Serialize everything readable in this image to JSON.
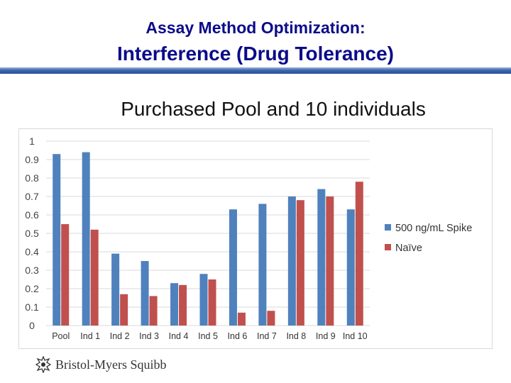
{
  "slide": {
    "subtitle": "Assay Method Optimization:",
    "title": "Interference (Drug Tolerance)",
    "chart_heading": "Purchased Pool and 10 individuals",
    "logo_text": "Bristol-Myers Squibb"
  },
  "colors": {
    "header_text": "#0b0b8a",
    "series_spike": "#4f81bd",
    "series_naive": "#c0504d",
    "gridline": "#d9d9d9"
  },
  "chart_data": {
    "type": "bar",
    "title": "Purchased Pool and 10 individuals",
    "xlabel": "",
    "ylabel": "",
    "ylim": [
      0,
      1
    ],
    "yticks": [
      "0",
      "0.1",
      "0.2",
      "0.3",
      "0.4",
      "0.5",
      "0.6",
      "0.7",
      "0.8",
      "0.9",
      "1"
    ],
    "grid": true,
    "legend_position": "right",
    "categories": [
      "Pool",
      "Ind 1",
      "Ind 2",
      "Ind 3",
      "Ind 4",
      "Ind 5",
      "Ind 6",
      "Ind 7",
      "Ind 8",
      "Ind 9",
      "Ind 10"
    ],
    "series": [
      {
        "name": "500 ng/mL Spike",
        "values": [
          0.93,
          0.94,
          0.39,
          0.35,
          0.23,
          0.28,
          0.63,
          0.66,
          0.7,
          0.74,
          0.63
        ]
      },
      {
        "name": "Naïve",
        "values": [
          0.55,
          0.52,
          0.17,
          0.16,
          0.22,
          0.25,
          0.07,
          0.08,
          0.68,
          0.7,
          0.78
        ]
      }
    ]
  }
}
